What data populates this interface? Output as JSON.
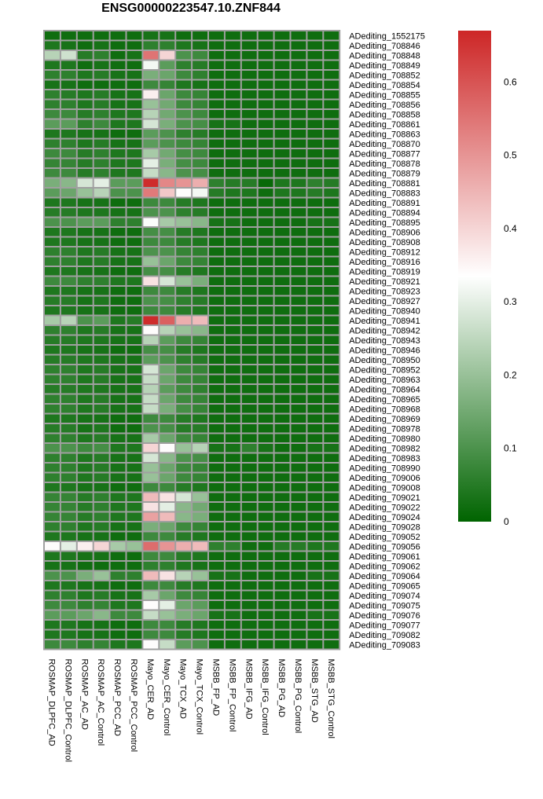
{
  "chart_data": {
    "type": "heatmap",
    "title": "ENSG00000223547.10.ZNF844",
    "xlabel": "",
    "ylabel": "",
    "columns": [
      "ROSMAP_DLPFC_AD",
      "ROSMAP_DLPFC_Control",
      "ROSMAP_AC_AD",
      "ROSMAP_AC_Control",
      "ROSMAP_PCC_AD",
      "ROSMAP_PCC_Control",
      "Mayo_CER_AD",
      "Mayo_CER_Control",
      "Mayo_TCX_AD",
      "Mayo_TCX_Control",
      "MSBB_FP_AD",
      "MSBB_FP_Control",
      "MSBB_IFG_AD",
      "MSBB_IFG_Control",
      "MSBB_PG_AD",
      "MSBB_PG_Control",
      "MSBB_STG_AD",
      "MSBB_STG_Control"
    ],
    "rows": [
      "ADediting_1552175",
      "ADediting_708846",
      "ADediting_708848",
      "ADediting_708849",
      "ADediting_708852",
      "ADediting_708854",
      "ADediting_708855",
      "ADediting_708856",
      "ADediting_708858",
      "ADediting_708861",
      "ADediting_708863",
      "ADediting_708870",
      "ADediting_708877",
      "ADediting_708878",
      "ADediting_708879",
      "ADediting_708881",
      "ADediting_708883",
      "ADediting_708891",
      "ADediting_708894",
      "ADediting_708895",
      "ADediting_708906",
      "ADediting_708908",
      "ADediting_708912",
      "ADediting_708916",
      "ADediting_708919",
      "ADediting_708921",
      "ADediting_708923",
      "ADediting_708927",
      "ADediting_708940",
      "ADediting_708941",
      "ADediting_708942",
      "ADediting_708943",
      "ADediting_708946",
      "ADediting_708950",
      "ADediting_708952",
      "ADediting_708963",
      "ADediting_708964",
      "ADediting_708965",
      "ADediting_708968",
      "ADediting_708969",
      "ADediting_708978",
      "ADediting_708980",
      "ADediting_708982",
      "ADediting_708983",
      "ADediting_708990",
      "ADediting_709006",
      "ADediting_709008",
      "ADediting_709021",
      "ADediting_709022",
      "ADediting_709024",
      "ADediting_709028",
      "ADediting_709052",
      "ADediting_709056",
      "ADediting_709061",
      "ADediting_709062",
      "ADediting_709064",
      "ADediting_709065",
      "ADediting_709074",
      "ADediting_709075",
      "ADediting_709076",
      "ADediting_709077",
      "ADediting_709082",
      "ADediting_709083"
    ],
    "values": [
      [
        0.02,
        0.02,
        0.02,
        0.02,
        0.02,
        0.02,
        0.03,
        0.03,
        0.02,
        0.02,
        0.02,
        0.02,
        0.02,
        0.02,
        0.02,
        0.02,
        0.02,
        0.02
      ],
      [
        0.04,
        0.03,
        0.02,
        0.03,
        0.02,
        0.02,
        0.06,
        0.06,
        0.04,
        0.03,
        0.02,
        0.02,
        0.02,
        0.02,
        0.02,
        0.02,
        0.02,
        0.02
      ],
      [
        0.24,
        0.27,
        0.05,
        0.06,
        0.02,
        0.03,
        0.55,
        0.4,
        0.1,
        0.08,
        0.02,
        0.02,
        0.02,
        0.02,
        0.02,
        0.02,
        0.02,
        0.02
      ],
      [
        0.04,
        0.04,
        0.02,
        0.03,
        0.02,
        0.02,
        0.32,
        0.12,
        0.06,
        0.05,
        0.02,
        0.02,
        0.02,
        0.02,
        0.02,
        0.02,
        0.02,
        0.02
      ],
      [
        0.06,
        0.06,
        0.04,
        0.05,
        0.03,
        0.03,
        0.16,
        0.14,
        0.08,
        0.06,
        0.02,
        0.02,
        0.02,
        0.02,
        0.02,
        0.02,
        0.02,
        0.02
      ],
      [
        0.03,
        0.03,
        0.02,
        0.02,
        0.02,
        0.02,
        0.08,
        0.07,
        0.04,
        0.03,
        0.02,
        0.02,
        0.02,
        0.02,
        0.02,
        0.02,
        0.02,
        0.02
      ],
      [
        0.06,
        0.05,
        0.04,
        0.05,
        0.03,
        0.03,
        0.36,
        0.14,
        0.08,
        0.07,
        0.02,
        0.02,
        0.02,
        0.02,
        0.02,
        0.02,
        0.02,
        0.02
      ],
      [
        0.06,
        0.06,
        0.04,
        0.05,
        0.03,
        0.03,
        0.2,
        0.15,
        0.08,
        0.07,
        0.02,
        0.02,
        0.02,
        0.02,
        0.02,
        0.02,
        0.02,
        0.02
      ],
      [
        0.08,
        0.08,
        0.05,
        0.06,
        0.04,
        0.04,
        0.24,
        0.15,
        0.1,
        0.08,
        0.02,
        0.02,
        0.02,
        0.02,
        0.02,
        0.02,
        0.02,
        0.02
      ],
      [
        0.12,
        0.12,
        0.06,
        0.08,
        0.04,
        0.04,
        0.28,
        0.16,
        0.1,
        0.09,
        0.03,
        0.03,
        0.02,
        0.02,
        0.02,
        0.02,
        0.02,
        0.02
      ],
      [
        0.04,
        0.04,
        0.03,
        0.03,
        0.02,
        0.02,
        0.12,
        0.1,
        0.06,
        0.05,
        0.02,
        0.02,
        0.02,
        0.02,
        0.02,
        0.02,
        0.02,
        0.02
      ],
      [
        0.06,
        0.06,
        0.04,
        0.05,
        0.03,
        0.03,
        0.12,
        0.1,
        0.08,
        0.07,
        0.02,
        0.02,
        0.02,
        0.02,
        0.02,
        0.02,
        0.02,
        0.02
      ],
      [
        0.08,
        0.08,
        0.05,
        0.06,
        0.04,
        0.04,
        0.22,
        0.15,
        0.09,
        0.08,
        0.02,
        0.02,
        0.02,
        0.02,
        0.02,
        0.02,
        0.02,
        0.02
      ],
      [
        0.07,
        0.07,
        0.05,
        0.06,
        0.04,
        0.04,
        0.3,
        0.16,
        0.09,
        0.08,
        0.02,
        0.02,
        0.02,
        0.02,
        0.02,
        0.02,
        0.02,
        0.02
      ],
      [
        0.08,
        0.08,
        0.05,
        0.06,
        0.04,
        0.04,
        0.26,
        0.18,
        0.1,
        0.09,
        0.02,
        0.02,
        0.02,
        0.02,
        0.02,
        0.02,
        0.02,
        0.02
      ],
      [
        0.16,
        0.18,
        0.28,
        0.3,
        0.12,
        0.12,
        0.66,
        0.52,
        0.5,
        0.46,
        0.06,
        0.05,
        0.05,
        0.01,
        0.04,
        0.04,
        0.06,
        0.05
      ],
      [
        0.12,
        0.14,
        0.2,
        0.24,
        0.1,
        0.1,
        0.54,
        0.42,
        0.34,
        0.32,
        0.05,
        0.04,
        0.04,
        0.02,
        0.04,
        0.04,
        0.05,
        0.04
      ],
      [
        0.04,
        0.04,
        0.03,
        0.03,
        0.02,
        0.02,
        0.08,
        0.08,
        0.05,
        0.04,
        0.02,
        0.02,
        0.02,
        0.02,
        0.02,
        0.02,
        0.02,
        0.02
      ],
      [
        0.05,
        0.05,
        0.04,
        0.04,
        0.03,
        0.03,
        0.1,
        0.1,
        0.06,
        0.05,
        0.02,
        0.02,
        0.02,
        0.02,
        0.02,
        0.02,
        0.02,
        0.02
      ],
      [
        0.1,
        0.1,
        0.12,
        0.12,
        0.06,
        0.06,
        0.33,
        0.22,
        0.2,
        0.18,
        0.03,
        0.03,
        0.02,
        0.02,
        0.02,
        0.02,
        0.03,
        0.03
      ],
      [
        0.04,
        0.04,
        0.03,
        0.03,
        0.02,
        0.02,
        0.09,
        0.09,
        0.05,
        0.04,
        0.02,
        0.02,
        0.02,
        0.02,
        0.02,
        0.02,
        0.02,
        0.02
      ],
      [
        0.04,
        0.04,
        0.03,
        0.03,
        0.02,
        0.02,
        0.08,
        0.08,
        0.05,
        0.04,
        0.02,
        0.02,
        0.02,
        0.02,
        0.02,
        0.02,
        0.02,
        0.02
      ],
      [
        0.06,
        0.06,
        0.04,
        0.05,
        0.03,
        0.03,
        0.1,
        0.1,
        0.07,
        0.06,
        0.02,
        0.02,
        0.02,
        0.02,
        0.02,
        0.02,
        0.02,
        0.02
      ],
      [
        0.06,
        0.06,
        0.04,
        0.05,
        0.03,
        0.03,
        0.2,
        0.14,
        0.08,
        0.07,
        0.02,
        0.02,
        0.02,
        0.02,
        0.02,
        0.02,
        0.02,
        0.02
      ],
      [
        0.04,
        0.04,
        0.03,
        0.03,
        0.02,
        0.02,
        0.09,
        0.09,
        0.05,
        0.04,
        0.02,
        0.02,
        0.02,
        0.02,
        0.02,
        0.02,
        0.02,
        0.02
      ],
      [
        0.08,
        0.08,
        0.06,
        0.06,
        0.04,
        0.04,
        0.38,
        0.28,
        0.2,
        0.16,
        0.02,
        0.02,
        0.02,
        0.02,
        0.02,
        0.02,
        0.02,
        0.02
      ],
      [
        0.04,
        0.04,
        0.03,
        0.03,
        0.02,
        0.02,
        0.08,
        0.08,
        0.05,
        0.04,
        0.02,
        0.02,
        0.02,
        0.02,
        0.02,
        0.02,
        0.02,
        0.02
      ],
      [
        0.05,
        0.05,
        0.03,
        0.04,
        0.02,
        0.02,
        0.1,
        0.09,
        0.06,
        0.05,
        0.02,
        0.02,
        0.02,
        0.02,
        0.02,
        0.02,
        0.02,
        0.02
      ],
      [
        0.04,
        0.04,
        0.03,
        0.03,
        0.02,
        0.02,
        0.08,
        0.08,
        0.05,
        0.04,
        0.02,
        0.02,
        0.02,
        0.02,
        0.02,
        0.02,
        0.02,
        0.02
      ],
      [
        0.22,
        0.24,
        0.1,
        0.12,
        0.04,
        0.05,
        0.66,
        0.58,
        0.46,
        0.44,
        0.02,
        0.02,
        0.02,
        0.02,
        0.02,
        0.02,
        0.02,
        0.02
      ],
      [
        0.06,
        0.06,
        0.04,
        0.05,
        0.03,
        0.03,
        0.34,
        0.24,
        0.2,
        0.18,
        0.02,
        0.02,
        0.02,
        0.02,
        0.02,
        0.02,
        0.02,
        0.02
      ],
      [
        0.05,
        0.05,
        0.04,
        0.04,
        0.03,
        0.03,
        0.24,
        0.12,
        0.08,
        0.07,
        0.02,
        0.02,
        0.02,
        0.02,
        0.02,
        0.02,
        0.02,
        0.02
      ],
      [
        0.04,
        0.04,
        0.03,
        0.03,
        0.02,
        0.02,
        0.09,
        0.09,
        0.05,
        0.04,
        0.02,
        0.02,
        0.02,
        0.02,
        0.02,
        0.02,
        0.02,
        0.02
      ],
      [
        0.05,
        0.05,
        0.04,
        0.04,
        0.03,
        0.03,
        0.12,
        0.1,
        0.06,
        0.05,
        0.02,
        0.02,
        0.02,
        0.02,
        0.02,
        0.02,
        0.02,
        0.02
      ],
      [
        0.06,
        0.06,
        0.04,
        0.05,
        0.03,
        0.03,
        0.28,
        0.14,
        0.08,
        0.07,
        0.02,
        0.02,
        0.02,
        0.02,
        0.02,
        0.02,
        0.02,
        0.02
      ],
      [
        0.06,
        0.06,
        0.04,
        0.05,
        0.03,
        0.03,
        0.26,
        0.14,
        0.08,
        0.07,
        0.02,
        0.02,
        0.02,
        0.02,
        0.02,
        0.02,
        0.02,
        0.02
      ],
      [
        0.05,
        0.05,
        0.04,
        0.04,
        0.03,
        0.03,
        0.24,
        0.12,
        0.08,
        0.06,
        0.02,
        0.02,
        0.02,
        0.02,
        0.02,
        0.02,
        0.02,
        0.02
      ],
      [
        0.06,
        0.06,
        0.04,
        0.05,
        0.03,
        0.03,
        0.26,
        0.14,
        0.08,
        0.07,
        0.02,
        0.02,
        0.02,
        0.02,
        0.02,
        0.02,
        0.02,
        0.02
      ],
      [
        0.06,
        0.06,
        0.04,
        0.05,
        0.03,
        0.03,
        0.26,
        0.16,
        0.09,
        0.07,
        0.02,
        0.02,
        0.02,
        0.02,
        0.02,
        0.02,
        0.02,
        0.02
      ],
      [
        0.04,
        0.04,
        0.03,
        0.03,
        0.02,
        0.02,
        0.08,
        0.08,
        0.05,
        0.04,
        0.02,
        0.02,
        0.02,
        0.02,
        0.02,
        0.02,
        0.02,
        0.02
      ],
      [
        0.05,
        0.05,
        0.03,
        0.04,
        0.02,
        0.02,
        0.1,
        0.09,
        0.05,
        0.05,
        0.02,
        0.02,
        0.02,
        0.02,
        0.02,
        0.02,
        0.02,
        0.02
      ],
      [
        0.06,
        0.06,
        0.04,
        0.05,
        0.03,
        0.03,
        0.22,
        0.14,
        0.08,
        0.07,
        0.02,
        0.02,
        0.02,
        0.02,
        0.02,
        0.02,
        0.02,
        0.02
      ],
      [
        0.1,
        0.1,
        0.08,
        0.09,
        0.04,
        0.04,
        0.4,
        0.34,
        0.2,
        0.24,
        0.03,
        0.03,
        0.06,
        0.03,
        0.02,
        0.02,
        0.03,
        0.03
      ],
      [
        0.06,
        0.06,
        0.04,
        0.05,
        0.03,
        0.03,
        0.28,
        0.18,
        0.1,
        0.09,
        0.02,
        0.02,
        0.02,
        0.02,
        0.02,
        0.02,
        0.02,
        0.02
      ],
      [
        0.06,
        0.06,
        0.04,
        0.05,
        0.03,
        0.03,
        0.2,
        0.14,
        0.08,
        0.07,
        0.02,
        0.02,
        0.02,
        0.02,
        0.02,
        0.02,
        0.02,
        0.02
      ],
      [
        0.06,
        0.06,
        0.04,
        0.05,
        0.03,
        0.03,
        0.2,
        0.14,
        0.08,
        0.07,
        0.02,
        0.02,
        0.02,
        0.02,
        0.02,
        0.02,
        0.02,
        0.02
      ],
      [
        0.04,
        0.04,
        0.03,
        0.03,
        0.02,
        0.02,
        0.08,
        0.08,
        0.05,
        0.04,
        0.02,
        0.02,
        0.02,
        0.02,
        0.02,
        0.02,
        0.02,
        0.02
      ],
      [
        0.07,
        0.07,
        0.05,
        0.06,
        0.04,
        0.04,
        0.44,
        0.38,
        0.28,
        0.2,
        0.02,
        0.02,
        0.02,
        0.02,
        0.02,
        0.02,
        0.02,
        0.02
      ],
      [
        0.07,
        0.07,
        0.05,
        0.06,
        0.04,
        0.04,
        0.38,
        0.3,
        0.18,
        0.15,
        0.02,
        0.02,
        0.02,
        0.02,
        0.02,
        0.02,
        0.02,
        0.02
      ],
      [
        0.07,
        0.07,
        0.05,
        0.06,
        0.04,
        0.04,
        0.48,
        0.44,
        0.18,
        0.16,
        0.02,
        0.02,
        0.02,
        0.02,
        0.02,
        0.02,
        0.02,
        0.02
      ],
      [
        0.06,
        0.06,
        0.04,
        0.05,
        0.03,
        0.03,
        0.16,
        0.14,
        0.08,
        0.07,
        0.02,
        0.02,
        0.02,
        0.02,
        0.02,
        0.02,
        0.02,
        0.02
      ],
      [
        0.04,
        0.04,
        0.03,
        0.03,
        0.02,
        0.02,
        0.08,
        0.08,
        0.05,
        0.04,
        0.02,
        0.02,
        0.02,
        0.02,
        0.02,
        0.02,
        0.02,
        0.02
      ],
      [
        0.34,
        0.3,
        0.36,
        0.4,
        0.22,
        0.2,
        0.56,
        0.5,
        0.46,
        0.44,
        0.06,
        0.06,
        0.02,
        0.02,
        0.05,
        0.05,
        0.04,
        0.04
      ],
      [
        0.04,
        0.04,
        0.03,
        0.03,
        0.02,
        0.02,
        0.08,
        0.08,
        0.05,
        0.04,
        0.02,
        0.02,
        0.02,
        0.02,
        0.02,
        0.02,
        0.02,
        0.02
      ],
      [
        0.03,
        0.03,
        0.02,
        0.02,
        0.02,
        0.02,
        0.06,
        0.06,
        0.04,
        0.03,
        0.02,
        0.02,
        0.02,
        0.02,
        0.02,
        0.02,
        0.02,
        0.02
      ],
      [
        0.1,
        0.1,
        0.16,
        0.2,
        0.06,
        0.06,
        0.44,
        0.38,
        0.24,
        0.2,
        0.03,
        0.03,
        0.02,
        0.02,
        0.02,
        0.02,
        0.03,
        0.03
      ],
      [
        0.04,
        0.04,
        0.03,
        0.03,
        0.02,
        0.02,
        0.08,
        0.08,
        0.05,
        0.04,
        0.02,
        0.02,
        0.02,
        0.02,
        0.02,
        0.02,
        0.02,
        0.02
      ],
      [
        0.06,
        0.06,
        0.04,
        0.05,
        0.03,
        0.03,
        0.22,
        0.14,
        0.08,
        0.07,
        0.02,
        0.02,
        0.02,
        0.02,
        0.02,
        0.02,
        0.02,
        0.02
      ],
      [
        0.08,
        0.08,
        0.06,
        0.07,
        0.04,
        0.04,
        0.34,
        0.3,
        0.14,
        0.12,
        0.02,
        0.02,
        0.02,
        0.02,
        0.02,
        0.02,
        0.02,
        0.02
      ],
      [
        0.12,
        0.12,
        0.14,
        0.18,
        0.08,
        0.08,
        0.26,
        0.2,
        0.16,
        0.14,
        0.03,
        0.03,
        0.02,
        0.02,
        0.02,
        0.02,
        0.03,
        0.03
      ],
      [
        0.04,
        0.04,
        0.03,
        0.03,
        0.02,
        0.02,
        0.08,
        0.08,
        0.05,
        0.04,
        0.02,
        0.02,
        0.02,
        0.02,
        0.02,
        0.02,
        0.02,
        0.02
      ],
      [
        0.04,
        0.04,
        0.03,
        0.03,
        0.02,
        0.02,
        0.08,
        0.08,
        0.05,
        0.04,
        0.02,
        0.02,
        0.02,
        0.02,
        0.02,
        0.02,
        0.02,
        0.02
      ],
      [
        0.08,
        0.08,
        0.06,
        0.07,
        0.04,
        0.04,
        0.34,
        0.26,
        0.12,
        0.1,
        0.02,
        0.02,
        0.02,
        0.02,
        0.02,
        0.02,
        0.02,
        0.02
      ]
    ],
    "colorbar": {
      "min": 0,
      "max": 0.67,
      "mid": 0.335,
      "ticks": [
        0,
        0.1,
        0.2,
        0.3,
        0.4,
        0.5,
        0.6
      ],
      "tick_labels": [
        "0",
        "0.1",
        "0.2",
        "0.3",
        "0.4",
        "0.5",
        "0.6"
      ],
      "low_color": "#006400",
      "mid_color": "#ffffff",
      "high_color": "#cd2626"
    },
    "cell_border_color": "#a0a0a0"
  }
}
